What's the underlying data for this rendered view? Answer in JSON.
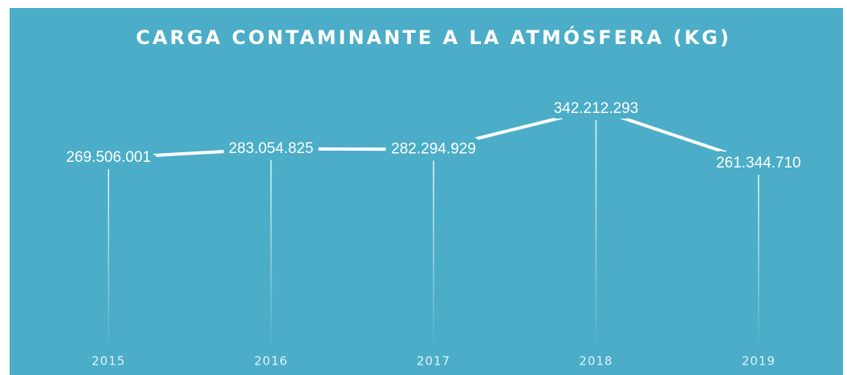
{
  "chart_data": {
    "type": "line",
    "title": "CARGA CONTAMINANTE A LA ATMÓSFERA (KG)",
    "categories": [
      "2015",
      "2016",
      "2017",
      "2018",
      "2019"
    ],
    "values": [
      269506001,
      283054825,
      282294929,
      342212293,
      261344710
    ],
    "value_labels": [
      "269.506.001",
      "283.054.825",
      "282.294.929",
      "342.212.293",
      "261.344.710"
    ],
    "color": "#ffffff",
    "background": "#4badc7"
  }
}
